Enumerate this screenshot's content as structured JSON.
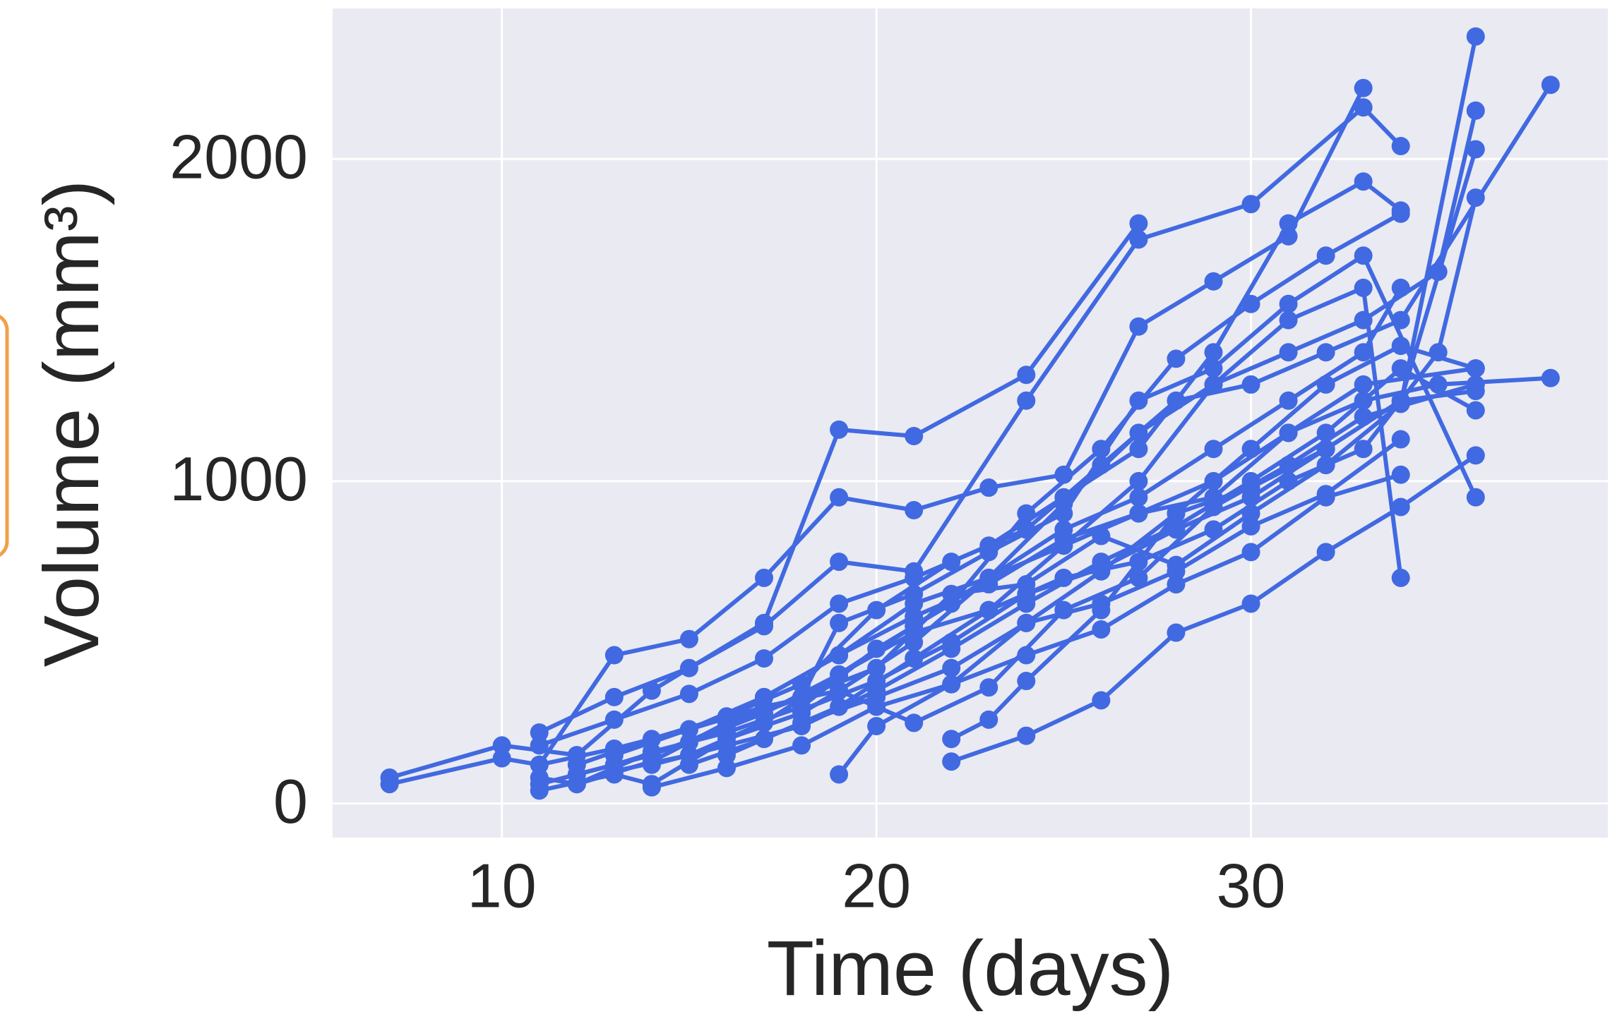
{
  "chart_data": {
    "type": "line",
    "x_label": "Time (days)",
    "y_label": "Volume (mm³)",
    "xlim": [
      5.48,
      39.53
    ],
    "ylim": [
      -106,
      2467
    ],
    "xticks": [
      10,
      20,
      30
    ],
    "yticks": [
      0,
      1000,
      2000
    ],
    "grid": true,
    "color": "#4169e1",
    "series": [
      {
        "x": [
          7,
          10,
          12,
          14,
          17,
          19,
          21,
          24,
          27
        ],
        "values": [
          80,
          180,
          150,
          350,
          560,
          1160,
          1140,
          1330,
          1800
        ]
      },
      {
        "x": [
          7,
          10,
          11,
          13,
          15,
          17,
          19,
          21,
          23,
          25,
          27,
          29,
          31,
          33
        ],
        "values": [
          60,
          140,
          120,
          460,
          510,
          700,
          950,
          910,
          980,
          1020,
          1480,
          1620,
          1760,
          2220
        ]
      },
      {
        "x": [
          11,
          13,
          15,
          17,
          19,
          21,
          24,
          27,
          30,
          33,
          34
        ],
        "values": [
          220,
          330,
          420,
          550,
          750,
          720,
          1250,
          1750,
          1860,
          2160,
          2040
        ]
      },
      {
        "x": [
          11,
          12,
          14,
          16,
          18,
          20,
          22,
          24,
          26,
          28,
          30,
          32,
          34
        ],
        "values": [
          80,
          60,
          160,
          220,
          300,
          480,
          620,
          900,
          1100,
          1380,
          1550,
          1700,
          1830
        ]
      },
      {
        "x": [
          11,
          13,
          14,
          16,
          18,
          19,
          21,
          23,
          25,
          27,
          29,
          31,
          33,
          36
        ],
        "values": [
          40,
          90,
          60,
          200,
          280,
          350,
          500,
          700,
          800,
          900,
          950,
          1150,
          1300,
          1350
        ]
      },
      {
        "x": [
          12,
          14,
          16,
          18,
          20,
          22,
          24,
          26,
          28,
          30,
          32,
          34,
          36
        ],
        "values": [
          60,
          130,
          250,
          330,
          420,
          650,
          680,
          830,
          740,
          900,
          1050,
          1240,
          2380
        ]
      },
      {
        "x": [
          13,
          15,
          17,
          19,
          21,
          23,
          25,
          27,
          29,
          31,
          33,
          35,
          36
        ],
        "values": [
          100,
          150,
          250,
          400,
          530,
          600,
          700,
          750,
          850,
          1000,
          1100,
          1400,
          1880
        ]
      },
      {
        "x": [
          11,
          13,
          15,
          17,
          19,
          21,
          23,
          25,
          27,
          29,
          31,
          33,
          36
        ],
        "values": [
          120,
          170,
          230,
          300,
          350,
          250,
          360,
          600,
          700,
          920,
          1050,
          1200,
          1300
        ]
      },
      {
        "x": [
          14,
          16,
          18,
          20,
          22,
          24,
          26,
          28,
          30,
          32,
          34
        ],
        "values": [
          50,
          110,
          180,
          300,
          370,
          560,
          620,
          720,
          860,
          960,
          1130
        ]
      },
      {
        "x": [
          16,
          18,
          20,
          22,
          24,
          26,
          28,
          30,
          32,
          34,
          36
        ],
        "values": [
          150,
          250,
          330,
          420,
          560,
          720,
          900,
          980,
          1100,
          1250,
          1280
        ]
      },
      {
        "x": [
          19,
          20,
          22,
          24,
          26,
          28,
          30,
          32,
          34
        ],
        "values": [
          90,
          240,
          370,
          460,
          540,
          680,
          780,
          950,
          1020
        ]
      },
      {
        "x": [
          22,
          24,
          26,
          28,
          30,
          32,
          34,
          36
        ],
        "values": [
          130,
          210,
          320,
          530,
          620,
          780,
          920,
          1080
        ]
      },
      {
        "x": [
          22,
          23,
          24,
          26,
          28,
          30,
          32,
          34,
          36
        ],
        "values": [
          200,
          260,
          380,
          600,
          900,
          1100,
          1300,
          1420,
          1350
        ]
      },
      {
        "x": [
          15,
          17,
          19,
          21,
          23,
          25,
          27,
          29,
          31,
          33,
          34
        ],
        "values": [
          120,
          200,
          300,
          450,
          600,
          800,
          1000,
          1300,
          1500,
          1600,
          700
        ]
      },
      {
        "x": [
          12,
          14,
          16,
          18,
          20,
          22,
          24,
          26,
          28,
          30,
          32,
          34,
          38
        ],
        "values": [
          120,
          200,
          270,
          370,
          600,
          750,
          850,
          1050,
          1250,
          1300,
          1400,
          1500,
          2230
        ]
      },
      {
        "x": [
          11,
          13,
          15,
          17,
          19,
          21,
          23,
          25,
          27,
          29,
          31,
          33,
          34
        ],
        "values": [
          180,
          260,
          340,
          450,
          620,
          700,
          800,
          950,
          1100,
          1400,
          1800,
          1930,
          1840
        ]
      },
      {
        "x": [
          13,
          15,
          17,
          19,
          21,
          23,
          25,
          27,
          29,
          31,
          33,
          35,
          38
        ],
        "values": [
          150,
          230,
          330,
          460,
          580,
          680,
          820,
          900,
          1000,
          1150,
          1250,
          1300,
          1320
        ]
      },
      {
        "x": [
          11,
          13,
          15,
          17,
          19,
          21,
          23,
          25,
          27,
          29,
          31,
          33,
          34
        ],
        "values": [
          60,
          120,
          190,
          280,
          400,
          550,
          700,
          850,
          950,
          1100,
          1250,
          1400,
          1600
        ]
      },
      {
        "x": [
          12,
          14,
          16,
          18,
          19,
          21,
          23,
          25,
          27,
          29,
          31,
          33,
          36
        ],
        "values": [
          90,
          150,
          240,
          330,
          560,
          650,
          780,
          900,
          1250,
          1350,
          1550,
          1700,
          950
        ]
      },
      {
        "x": [
          14,
          16,
          18,
          20,
          22,
          24,
          26,
          28,
          30,
          32,
          34,
          36
        ],
        "values": [
          120,
          180,
          240,
          350,
          480,
          620,
          750,
          860,
          1000,
          1150,
          1350,
          1220
        ]
      },
      {
        "x": [
          18,
          20,
          22,
          24,
          26,
          28,
          30,
          32,
          34,
          36
        ],
        "values": [
          290,
          380,
          500,
          650,
          730,
          850,
          950,
          1100,
          1250,
          2030
        ]
      },
      {
        "x": [
          17,
          19,
          21,
          23,
          25,
          27,
          29,
          31,
          33,
          35,
          36
        ],
        "values": [
          330,
          460,
          620,
          700,
          930,
          1150,
          1300,
          1400,
          1500,
          1650,
          2150
        ]
      }
    ]
  }
}
